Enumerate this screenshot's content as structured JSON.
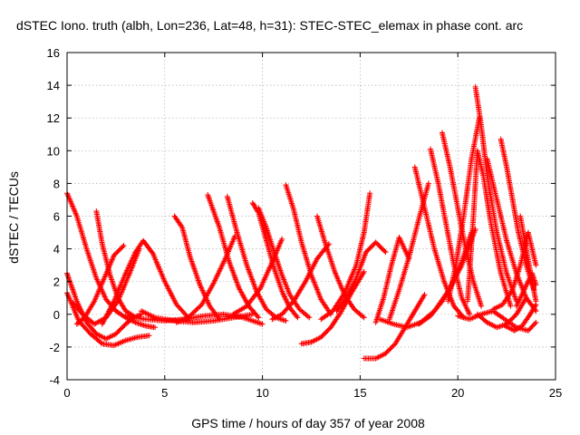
{
  "chart_data": {
    "type": "scatter",
    "title": "dSTEC Iono. truth (albh, Lon=236, Lat=48, h=31): STEC-STEC_elemax in phase cont. arc",
    "xlabel": "GPS time / hours of day 357 of year 2008",
    "ylabel": "dSTEC  / TECUs",
    "xlim": [
      0,
      25
    ],
    "ylim": [
      -4,
      16
    ],
    "xticks": [
      0,
      5,
      10,
      15,
      20,
      25
    ],
    "yticks": [
      -4,
      -2,
      0,
      2,
      4,
      6,
      8,
      10,
      12,
      14,
      16
    ],
    "grid": true,
    "marker": "plus",
    "color": "#ff0000",
    "arcs": [
      {
        "x": [
          0.0,
          0.5,
          1.0,
          1.5,
          2.0,
          2.5,
          3.0,
          3.5,
          4.0,
          4.5
        ],
        "y": [
          7.4,
          6.0,
          4.0,
          2.2,
          0.9,
          0.2,
          -0.2,
          -0.5,
          -0.7,
          -0.8
        ]
      },
      {
        "x": [
          0.0,
          0.5,
          1.0,
          1.5,
          2.0,
          2.5,
          3.0,
          3.4,
          3.8
        ],
        "y": [
          2.5,
          0.8,
          -0.5,
          -1.2,
          -1.5,
          -1.2,
          -0.6,
          -0.2,
          0.0
        ]
      },
      {
        "x": [
          0.0,
          0.6,
          1.2,
          1.8,
          2.4,
          3.0,
          3.6,
          4.2
        ],
        "y": [
          1.3,
          -0.4,
          -1.2,
          -1.8,
          -1.9,
          -1.6,
          -1.4,
          -1.3
        ]
      },
      {
        "x": [
          0.3,
          0.8,
          1.4,
          2.0,
          2.6,
          3.2,
          3.7
        ],
        "y": [
          0.7,
          0.0,
          -0.6,
          -0.2,
          0.8,
          2.5,
          4.0
        ]
      },
      {
        "x": [
          0.5,
          0.9,
          1.4,
          1.9,
          2.4,
          2.9
        ],
        "y": [
          -0.6,
          -0.2,
          0.8,
          2.2,
          3.6,
          4.2
        ]
      },
      {
        "x": [
          1.5,
          1.8,
          2.2,
          2.6,
          3.0,
          3.4
        ],
        "y": [
          6.3,
          4.3,
          2.4,
          1.0,
          0.2,
          -0.1
        ]
      },
      {
        "x": [
          1.8,
          2.4,
          3.0,
          3.5,
          3.9,
          4.4,
          5.0,
          5.6,
          6.2
        ],
        "y": [
          -0.6,
          0.8,
          2.5,
          3.8,
          4.5,
          3.7,
          2.0,
          0.6,
          -0.2
        ]
      },
      {
        "x": [
          5.5,
          5.9,
          6.3,
          6.8,
          7.3,
          7.8
        ],
        "y": [
          6.0,
          5.3,
          3.5,
          1.8,
          0.5,
          -0.3
        ]
      },
      {
        "x": [
          3.0,
          4.0,
          5.0,
          6.0,
          7.0,
          8.0,
          9.0,
          10.0
        ],
        "y": [
          -0.1,
          -0.3,
          -0.4,
          -0.3,
          -0.1,
          0.0,
          -0.2,
          -0.6
        ]
      },
      {
        "x": [
          3.8,
          4.5,
          5.5,
          6.5,
          7.5,
          8.5,
          9.5
        ],
        "y": [
          0.2,
          -0.2,
          -0.4,
          -0.5,
          -0.4,
          -0.2,
          0.0
        ]
      },
      {
        "x": [
          5.6,
          6.2,
          6.9,
          7.5,
          8.1,
          8.6
        ],
        "y": [
          -0.5,
          -0.2,
          0.6,
          1.9,
          3.4,
          4.8
        ]
      },
      {
        "x": [
          7.2,
          7.8,
          8.3,
          8.8,
          9.3,
          9.8
        ],
        "y": [
          7.3,
          5.3,
          3.2,
          1.6,
          0.5,
          -0.2
        ]
      },
      {
        "x": [
          8.2,
          8.7,
          9.2,
          9.7,
          10.2,
          10.7,
          11.2
        ],
        "y": [
          7.2,
          5.0,
          3.0,
          1.4,
          0.3,
          -0.2,
          -0.4
        ]
      },
      {
        "x": [
          9.5,
          9.8,
          10.2,
          10.6,
          11.0,
          11.4,
          11.8
        ],
        "y": [
          6.8,
          6.2,
          4.5,
          2.8,
          1.4,
          0.4,
          -0.2
        ]
      },
      {
        "x": [
          9.8,
          10.2,
          10.6,
          11.0,
          11.4,
          11.9,
          12.4
        ],
        "y": [
          6.5,
          5.3,
          3.8,
          2.4,
          1.2,
          0.3,
          -0.2
        ]
      },
      {
        "x": [
          11.2,
          11.6,
          12.0,
          12.5,
          13.0,
          13.5
        ],
        "y": [
          7.9,
          6.4,
          4.4,
          2.4,
          0.9,
          0.0
        ]
      },
      {
        "x": [
          8.5,
          9.2,
          9.9,
          10.5,
          11.0
        ],
        "y": [
          0.0,
          0.5,
          1.6,
          3.2,
          4.6
        ]
      },
      {
        "x": [
          10.5,
          11.0,
          11.6,
          12.2,
          12.8,
          13.4
        ],
        "y": [
          -0.3,
          0.0,
          0.8,
          2.0,
          3.4,
          4.3
        ]
      },
      {
        "x": [
          12.8,
          13.2,
          13.7,
          14.2,
          14.7,
          15.2
        ],
        "y": [
          6.0,
          4.4,
          2.6,
          1.2,
          0.3,
          -0.2
        ]
      },
      {
        "x": [
          12.0,
          12.5,
          13.0,
          13.5,
          14.0,
          14.6,
          15.2
        ],
        "y": [
          -1.8,
          -1.7,
          -1.4,
          -0.8,
          0.1,
          1.4,
          2.6
        ]
      },
      {
        "x": [
          13.0,
          13.6,
          14.2,
          14.8,
          15.2,
          15.5
        ],
        "y": [
          -0.3,
          0.2,
          1.3,
          3.0,
          5.0,
          7.4
        ]
      },
      {
        "x": [
          13.8,
          14.3,
          14.8,
          15.3,
          15.8,
          16.3
        ],
        "y": [
          0.2,
          1.0,
          2.2,
          3.8,
          4.4,
          3.8
        ]
      },
      {
        "x": [
          15.2,
          15.8,
          16.3,
          16.8,
          17.3,
          17.8,
          18.3
        ],
        "y": [
          -2.7,
          -2.7,
          -2.4,
          -1.8,
          -0.8,
          0.2,
          1.2
        ]
      },
      {
        "x": [
          15.8,
          16.2,
          16.6,
          17.0,
          17.5
        ],
        "y": [
          -0.5,
          1.0,
          3.0,
          4.7,
          3.4
        ]
      },
      {
        "x": [
          16.5,
          17.0,
          17.5,
          18.0,
          18.5
        ],
        "y": [
          -0.3,
          1.5,
          3.5,
          5.8,
          8.0
        ]
      },
      {
        "x": [
          17.8,
          18.3,
          18.8,
          19.3,
          19.8,
          20.3
        ],
        "y": [
          9.0,
          6.5,
          4.0,
          2.0,
          0.5,
          -0.2
        ]
      },
      {
        "x": [
          18.6,
          19.0,
          19.4,
          19.8,
          20.2,
          20.6
        ],
        "y": [
          10.1,
          8.0,
          5.5,
          3.0,
          1.0,
          0.0
        ]
      },
      {
        "x": [
          19.2,
          19.6,
          20.0,
          20.4,
          20.8,
          21.2
        ],
        "y": [
          11.1,
          9.0,
          6.5,
          4.0,
          2.0,
          0.5
        ]
      },
      {
        "x": [
          16.0,
          16.7,
          17.4,
          18.1,
          18.8,
          19.5,
          20.2,
          20.9
        ],
        "y": [
          -0.3,
          -0.6,
          -0.8,
          -0.5,
          0.2,
          1.4,
          3.0,
          5.2
        ]
      },
      {
        "x": [
          18.0,
          18.6,
          19.2,
          19.7,
          20.2,
          20.7
        ],
        "y": [
          -0.6,
          -0.1,
          0.8,
          1.8,
          3.2,
          5.0
        ]
      },
      {
        "x": [
          19.5,
          19.9,
          20.3,
          20.7,
          21.1
        ],
        "y": [
          0.8,
          3.0,
          6.0,
          9.5,
          12.0
        ]
      },
      {
        "x": [
          20.5,
          20.8,
          21.0,
          21.3,
          21.7,
          22.2,
          22.7
        ],
        "y": [
          0.8,
          6.0,
          10.0,
          8.5,
          5.5,
          2.5,
          0.5
        ]
      },
      {
        "x": [
          20.9,
          21.2,
          21.5,
          22.0,
          22.5,
          23.0
        ],
        "y": [
          13.9,
          11.5,
          8.5,
          5.0,
          2.5,
          0.8
        ]
      },
      {
        "x": [
          21.0,
          21.5,
          22.0,
          22.5,
          23.0,
          23.5
        ],
        "y": [
          0.0,
          -0.5,
          -0.8,
          -0.6,
          0.0,
          1.0
        ]
      },
      {
        "x": [
          21.5,
          22.0,
          22.5,
          23.0,
          23.5,
          24.0
        ],
        "y": [
          9.5,
          7.0,
          4.5,
          2.5,
          1.0,
          0.2
        ]
      },
      {
        "x": [
          22.2,
          22.5,
          22.8,
          23.1,
          23.5,
          23.9
        ],
        "y": [
          10.7,
          9.0,
          7.0,
          5.0,
          3.0,
          1.5
        ]
      },
      {
        "x": [
          21.8,
          22.3,
          22.8,
          23.2,
          23.6,
          24.0
        ],
        "y": [
          0.3,
          0.6,
          1.5,
          3.0,
          5.0,
          3.0
        ]
      },
      {
        "x": [
          23.2,
          23.5,
          23.8,
          24.0
        ],
        "y": [
          6.0,
          4.0,
          2.0,
          0.8
        ]
      },
      {
        "x": [
          20.0,
          20.6,
          21.2,
          21.8,
          22.4,
          23.0,
          23.6,
          24.0
        ],
        "y": [
          -0.1,
          -0.3,
          0.0,
          0.2,
          -0.3,
          -0.8,
          -1.0,
          -0.5
        ]
      },
      {
        "x": [
          22.4,
          22.9,
          23.3,
          23.7,
          24.0
        ],
        "y": [
          -0.7,
          -1.0,
          -0.7,
          0.0,
          0.6
        ]
      },
      {
        "x": [
          23.0,
          23.4,
          23.8,
          24.0
        ],
        "y": [
          0.5,
          1.5,
          2.5,
          1.8
        ]
      }
    ]
  }
}
